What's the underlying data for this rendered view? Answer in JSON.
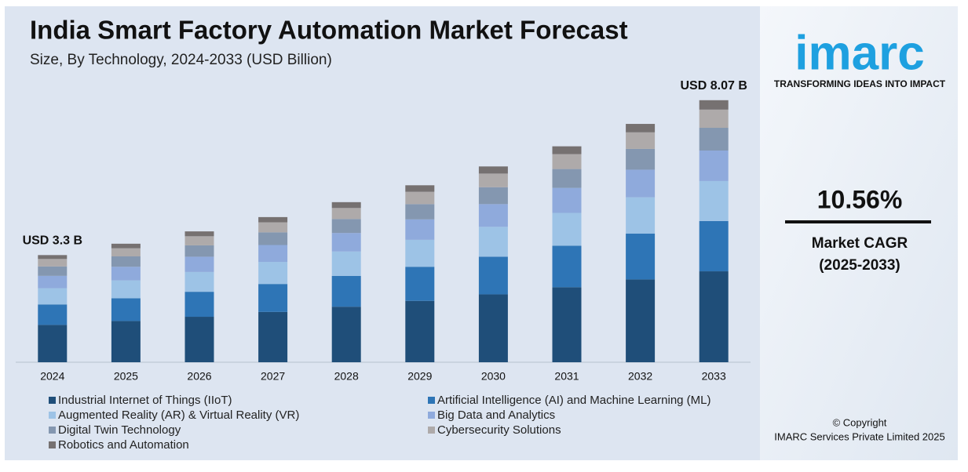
{
  "chart_data": {
    "type": "stacked_bar",
    "title": "India Smart Factory Automation Market Forecast",
    "subtitle": "Size, By Technology, 2024-2033 (USD Billion)",
    "categories": [
      "2024",
      "2025",
      "2026",
      "2027",
      "2028",
      "2029",
      "2030",
      "2031",
      "2032",
      "2033"
    ],
    "series": [
      {
        "name": "Industrial Internet of Things (IIoT)",
        "color": "#1f4e79",
        "values": [
          1.15,
          1.27,
          1.4,
          1.55,
          1.71,
          1.89,
          2.09,
          2.31,
          2.55,
          2.8
        ]
      },
      {
        "name": "Artificial Intelligence (AI) and Machine Learning (ML)",
        "color": "#2e75b6",
        "values": [
          0.63,
          0.7,
          0.77,
          0.86,
          0.95,
          1.05,
          1.16,
          1.28,
          1.41,
          1.55
        ]
      },
      {
        "name": "Augmented Reality (AR) & Virtual Reality (VR)",
        "color": "#9dc3e6",
        "values": [
          0.5,
          0.55,
          0.61,
          0.68,
          0.75,
          0.83,
          0.92,
          1.01,
          1.12,
          1.23
        ]
      },
      {
        "name": "Big Data and Analytics",
        "color": "#8faadc",
        "values": [
          0.38,
          0.42,
          0.47,
          0.52,
          0.57,
          0.63,
          0.7,
          0.77,
          0.85,
          0.94
        ]
      },
      {
        "name": "Digital Twin Technology",
        "color": "#8497b0",
        "values": [
          0.29,
          0.32,
          0.35,
          0.39,
          0.43,
          0.47,
          0.52,
          0.58,
          0.64,
          0.7
        ]
      },
      {
        "name": "Cybersecurity Solutions",
        "color": "#aeaaaa",
        "values": [
          0.23,
          0.25,
          0.28,
          0.31,
          0.34,
          0.38,
          0.42,
          0.46,
          0.51,
          0.56
        ]
      },
      {
        "name": "Robotics and Automation",
        "color": "#767171",
        "values": [
          0.12,
          0.14,
          0.15,
          0.16,
          0.18,
          0.2,
          0.22,
          0.24,
          0.26,
          0.29
        ]
      }
    ],
    "ylim": [
      0,
      8.5
    ],
    "annotations": [
      {
        "text": "USD 3.3 B",
        "category": 0
      },
      {
        "text": "USD 8.07 B",
        "category": 9
      }
    ]
  },
  "sidebar": {
    "logo": "imarc",
    "tagline": "TRANSFORMING IDEAS INTO IMPACT",
    "cagr": "10.56%",
    "cagr_label": "Market CAGR",
    "cagr_period": "(2025-2033)",
    "copyright": "© Copyright",
    "company": "IMARC Services Private Limited 2025"
  }
}
